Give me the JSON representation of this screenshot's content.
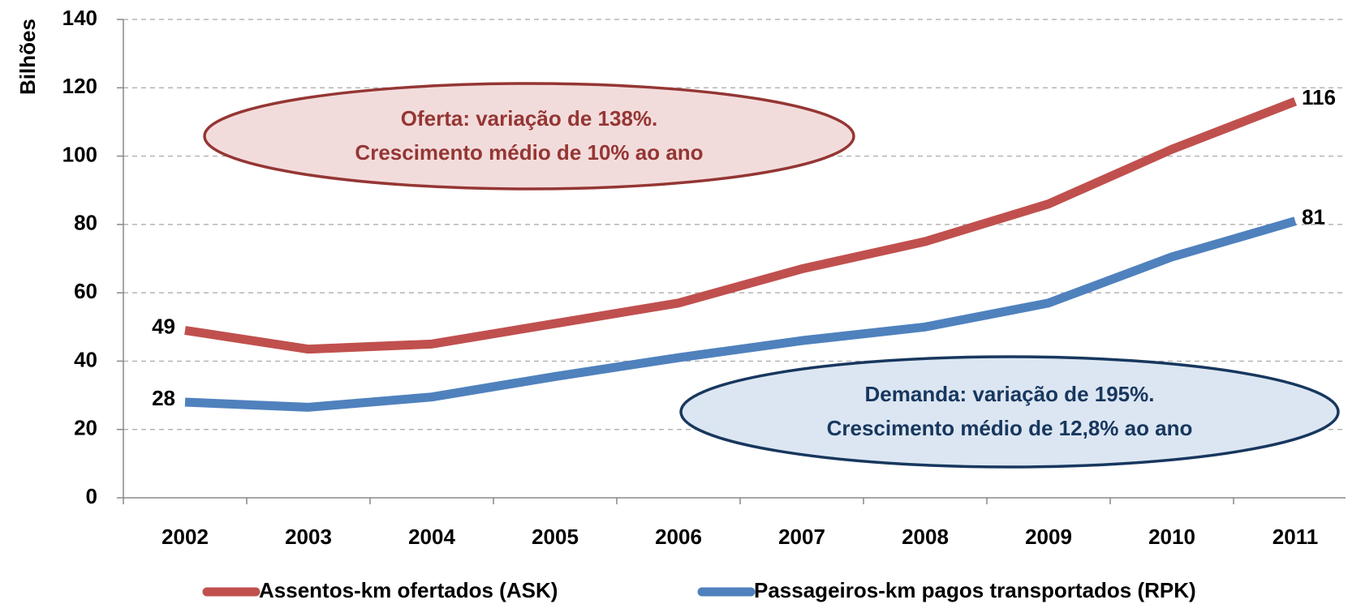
{
  "chart_data": {
    "type": "line",
    "ylabel": "Bilhões",
    "categories": [
      "2002",
      "2003",
      "2004",
      "2005",
      "2006",
      "2007",
      "2008",
      "2009",
      "2010",
      "2011"
    ],
    "series": [
      {
        "name": "Assentos-km ofertados (ASK)",
        "color": "#c0504d",
        "values": [
          49,
          43.5,
          45,
          51,
          57,
          67,
          75,
          86,
          102,
          116
        ],
        "value_labels": [
          "49",
          null,
          null,
          null,
          null,
          null,
          null,
          null,
          null,
          "116"
        ]
      },
      {
        "name": "Passageiros-km pagos transportados (RPK)",
        "color": "#4f81bd",
        "values": [
          28,
          26.5,
          29.5,
          35.5,
          41,
          46,
          50,
          57,
          70.5,
          81
        ],
        "value_labels": [
          "28",
          null,
          null,
          null,
          null,
          null,
          null,
          null,
          null,
          "81"
        ]
      }
    ],
    "ylim": [
      0,
      140
    ],
    "yticks": [
      0,
      20,
      40,
      60,
      80,
      100,
      120,
      140
    ],
    "grid": true,
    "legend": "bottom",
    "annotations": [
      {
        "lines": [
          "Oferta: variação de 138%.",
          "Crescimento médio de 10% ao ano"
        ],
        "color": "#943634",
        "fill": "#f2dcdb"
      },
      {
        "lines": [
          "Demanda: variação de 195%.",
          "Crescimento médio de 12,8% ao ano"
        ],
        "color": "#17375e",
        "fill": "#dce6f2"
      }
    ]
  }
}
